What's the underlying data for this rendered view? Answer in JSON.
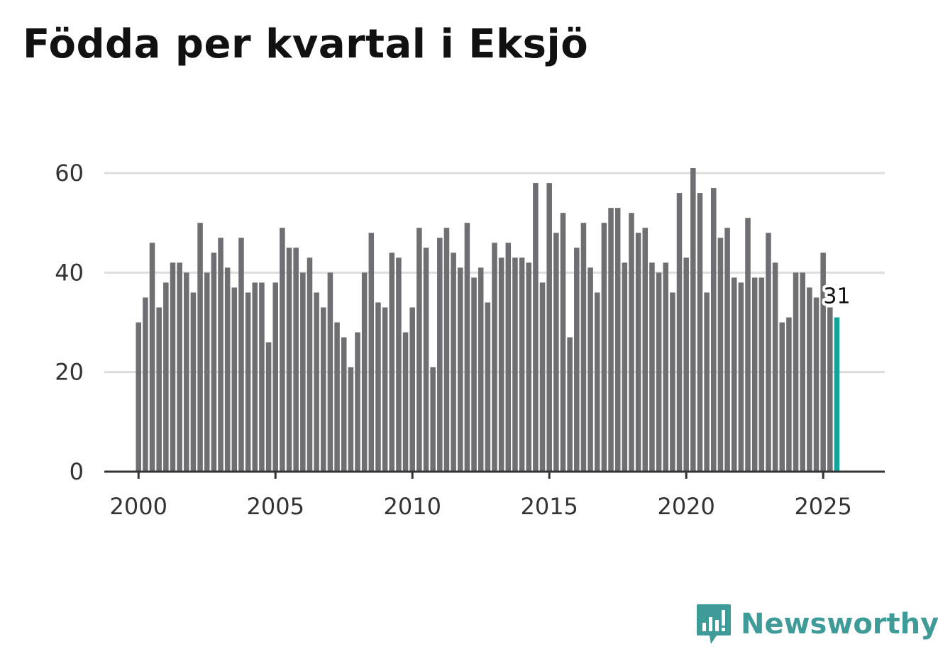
{
  "title": "Födda per kvartal i Eksjö",
  "brand": "Newsworthy",
  "chart_data": {
    "type": "bar",
    "title": "Födda per kvartal i Eksjö",
    "xlabel": "",
    "ylabel": "",
    "ylim": [
      0,
      62
    ],
    "xlim": [
      1998.75,
      2027.25
    ],
    "x_start": 2000.0,
    "x_step": 0.25,
    "yticks": [
      0,
      20,
      40,
      60
    ],
    "xticks": [
      2000,
      2005,
      2010,
      2015,
      2020,
      2025
    ],
    "values": [
      30,
      35,
      46,
      33,
      38,
      42,
      42,
      40,
      36,
      50,
      40,
      44,
      47,
      41,
      37,
      47,
      36,
      38,
      38,
      26,
      38,
      49,
      45,
      45,
      40,
      43,
      36,
      33,
      40,
      30,
      27,
      21,
      28,
      40,
      48,
      34,
      33,
      44,
      43,
      28,
      33,
      49,
      45,
      21,
      47,
      49,
      44,
      41,
      50,
      39,
      41,
      34,
      46,
      43,
      46,
      43,
      43,
      42,
      58,
      38,
      58,
      48,
      52,
      27,
      45,
      50,
      41,
      36,
      50,
      53,
      53,
      42,
      52,
      48,
      49,
      42,
      40,
      42,
      36,
      56,
      43,
      61,
      56,
      36,
      57,
      47,
      49,
      39,
      38,
      51,
      39,
      39,
      48,
      42,
      30,
      31,
      40,
      40,
      37,
      35,
      44,
      33,
      31
    ],
    "highlight_label": "31",
    "bar_color": "#6e6e73",
    "highlight_color": "#16a39a",
    "grid_color": "#dddddd",
    "axis_color": "#333333"
  }
}
